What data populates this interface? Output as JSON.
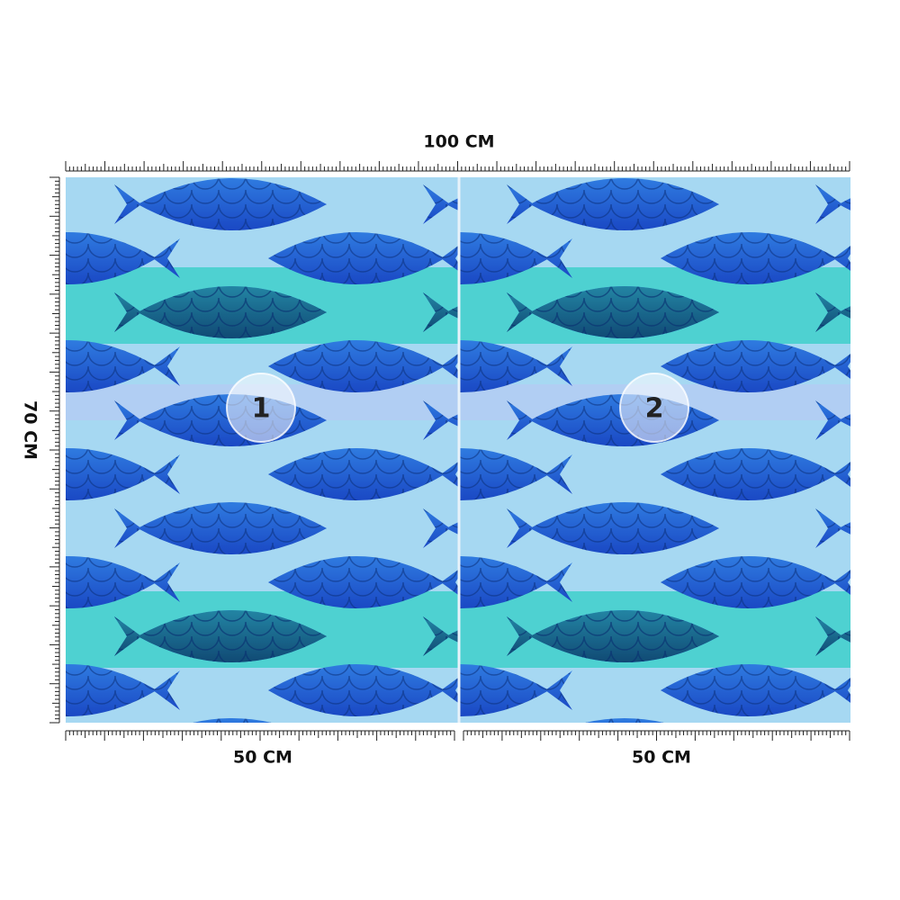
{
  "width_label": "100 CM",
  "height_label": "70 CM",
  "panels": [
    {
      "number": "1",
      "width_label": "50 CM"
    },
    {
      "number": "2",
      "width_label": "50 CM"
    }
  ]
}
